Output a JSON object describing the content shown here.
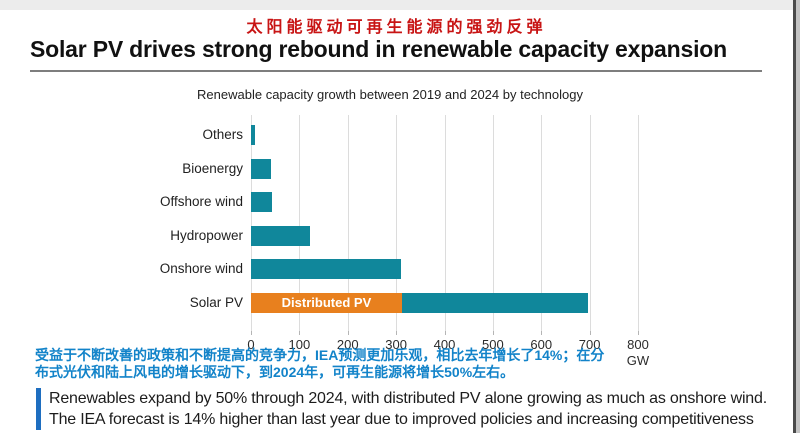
{
  "header": {
    "subtitle_cn": "太阳能驱动可再生能源的强劲反弹",
    "title": "Solar PV drives strong rebound in renewable capacity expansion"
  },
  "chart_data": {
    "type": "bar",
    "orientation": "horizontal",
    "title": "Renewable capacity growth between 2019 and 2024 by technology",
    "xlabel": "GW",
    "xlim": [
      0,
      800
    ],
    "xticks": [
      0,
      100,
      200,
      300,
      400,
      500,
      600,
      700,
      800
    ],
    "grid": true,
    "categories": [
      "Others",
      "Bioenergy",
      "Offshore wind",
      "Hydropower",
      "Onshore wind",
      "Solar PV"
    ],
    "values": [
      8,
      41,
      44,
      122,
      310,
      697
    ],
    "bar_color": "#10879B",
    "stacked_row": {
      "category": "Solar PV",
      "segments": [
        {
          "label": "Distributed PV",
          "value": 312,
          "color": "#E8801E",
          "text_color": "#ffffff"
        },
        {
          "label": "",
          "value": 385,
          "color": "#10879B",
          "text_color": "#ffffff"
        }
      ]
    }
  },
  "annotation_cn": {
    "line1": "受益于不断改善的政策和不断提高的竞争力，IEA预测更加乐观，相比去年增长了14%；在分",
    "line2": "布式光伏和陆上风电的增长驱动下，到2024年，可再生能源将增长50%左右。"
  },
  "takeaway": {
    "line1": "Renewables expand by 50% through 2024, with distributed PV alone growing as much as onshore wind.",
    "line2": "The IEA forecast is 14% higher than last year due to improved policies and increasing competitiveness"
  },
  "colors": {
    "bar_teal": "#10879B",
    "bar_orange": "#E8801E",
    "subtitle_red": "#C81414",
    "annotation_blue": "#1283C9",
    "accent_bar_blue": "#1E6EC0",
    "gridline": "#DCDCDC"
  }
}
